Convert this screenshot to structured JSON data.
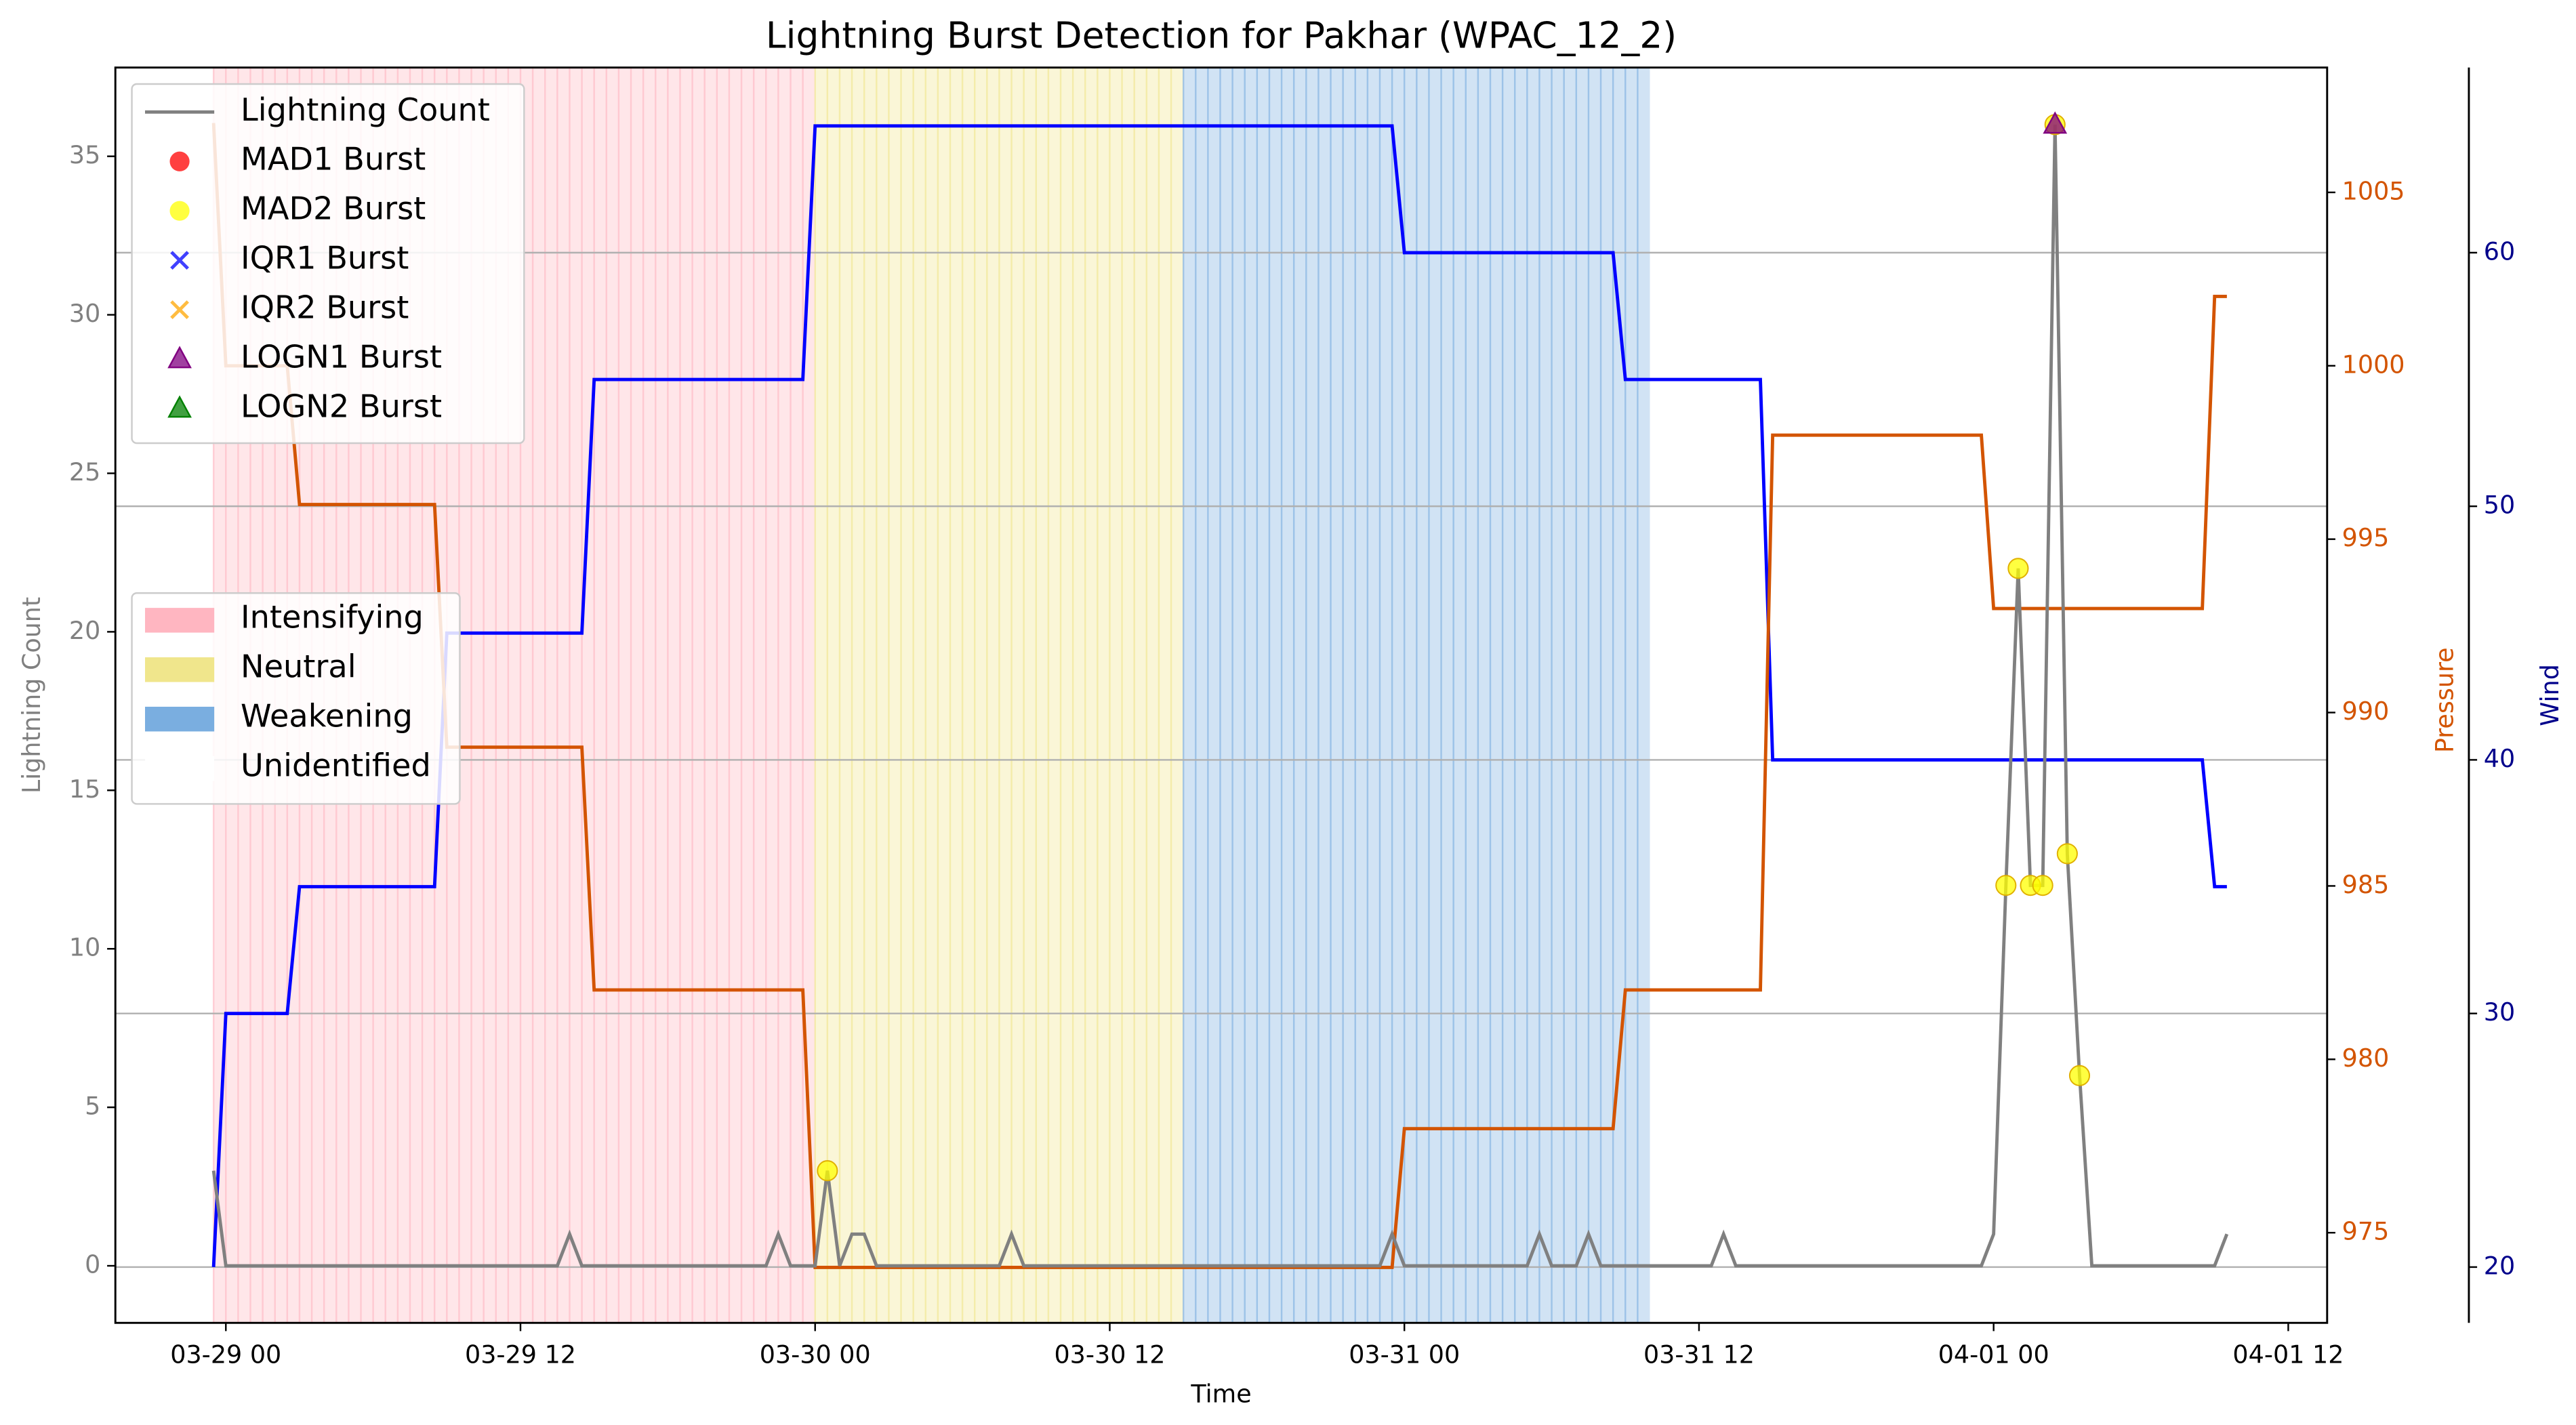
{
  "chart_data": {
    "type": "line",
    "title": "Lightning Burst Detection for Pakhar (WPAC_12_2)",
    "x_label": "Time",
    "y_label": "Lightning Count",
    "y2_label": "Pressure",
    "y3_label": "Wind",
    "xlim": [
      "03-28 19:30",
      "04-01 13:35"
    ],
    "xticks": [
      "03-29 00",
      "03-29 12",
      "03-30 00",
      "03-30 12",
      "03-31 00",
      "03-31 12",
      "04-01 00",
      "04-01 12"
    ],
    "ylim": [
      -1.8,
      37.8
    ],
    "yticks": [
      0,
      5,
      10,
      15,
      20,
      25,
      30,
      35
    ],
    "y2lim": [
      972.4,
      1008.6
    ],
    "y2ticks": [
      975,
      980,
      985,
      990,
      995,
      1000,
      1005
    ],
    "y3lim": [
      17.8,
      67.3
    ],
    "y3ticks": [
      20,
      30,
      40,
      50,
      60
    ],
    "grid_axis": "y3",
    "series": [
      {
        "name": "Lightning Count",
        "color": "#808080",
        "x": [
          "03-28 23:30",
          "03-29 00:00",
          "03-29 13:30",
          "03-29 14:00",
          "03-29 14:30",
          "03-29 22:00",
          "03-29 22:30",
          "03-29 23:00",
          "03-30 00:00",
          "03-30 00:30",
          "03-30 01:00",
          "03-30 01:30",
          "03-30 02:00",
          "03-30 02:30",
          "03-30 07:30",
          "03-30 08:00",
          "03-30 08:30",
          "03-30 23:00",
          "03-30 23:30",
          "03-31 00:00",
          "03-31 05:00",
          "03-31 05:30",
          "03-31 06:00",
          "03-31 07:00",
          "03-31 07:30",
          "03-31 08:00",
          "03-31 12:30",
          "03-31 13:00",
          "03-31 13:30",
          "03-31 23:30",
          "04-01 00:00",
          "04-01 00:30",
          "04-01 01:00",
          "04-01 01:30",
          "04-01 02:00",
          "04-01 02:30",
          "04-01 03:00",
          "04-01 03:30",
          "04-01 04:00",
          "04-01 09:00",
          "04-01 09:30"
        ],
        "values": [
          3,
          0,
          0,
          1,
          0,
          0,
          1,
          0,
          0,
          3,
          0,
          1,
          1,
          0,
          0,
          1,
          0,
          0,
          1,
          0,
          0,
          1,
          0,
          0,
          1,
          0,
          0,
          1,
          0,
          0,
          1,
          12,
          22,
          12,
          12,
          36,
          13,
          6,
          0,
          0,
          1
        ]
      },
      {
        "name": "MAD1 Burst",
        "color": "#ff0000",
        "marker": "o",
        "x": [],
        "values": []
      },
      {
        "name": "MAD2 Burst",
        "color": "#ffff00",
        "marker": "o",
        "x": [
          "03-30 00:30",
          "04-01 00:30",
          "04-01 01:00",
          "04-01 01:30",
          "04-01 02:00",
          "04-01 02:30",
          "04-01 03:00",
          "04-01 03:30"
        ],
        "values": [
          3,
          12,
          22,
          12,
          12,
          36,
          13,
          6
        ]
      },
      {
        "name": "IQR1 Burst",
        "color": "#0000ff",
        "marker": "x",
        "x": [],
        "values": []
      },
      {
        "name": "IQR2 Burst",
        "color": "#ffa500",
        "marker": "x",
        "x": [],
        "values": []
      },
      {
        "name": "LOGN1 Burst",
        "color": "#800080",
        "marker": "^",
        "x": [
          "04-01 02:30"
        ],
        "values": [
          36
        ]
      },
      {
        "name": "LOGN2 Burst",
        "color": "#008000",
        "marker": "^",
        "x": [],
        "values": []
      },
      {
        "color": "#d35400",
        "axis": "y2",
        "x": [
          "03-28 23:30",
          "03-29 00:00",
          "03-29 02:30",
          "03-29 03:00",
          "03-29 08:30",
          "03-29 09:00",
          "03-29 14:30",
          "03-29 15:00",
          "03-29 23:30",
          "03-30 00:00",
          "03-30 23:30",
          "03-31 00:00",
          "03-31 08:30",
          "03-31 09:00",
          "03-31 14:30",
          "03-31 15:00",
          "03-31 23:30",
          "04-01 00:00",
          "04-01 08:30",
          "04-01 09:00",
          "04-01 09:30"
        ],
        "values": [
          1007,
          1000,
          1000,
          996,
          996,
          989,
          989,
          982,
          982,
          974,
          974,
          978,
          978,
          982,
          982,
          998,
          998,
          993,
          993,
          1002,
          1002
        ]
      },
      {
        "color": "#0000ff",
        "axis": "y3",
        "x": [
          "03-28 23:30",
          "03-29 00:00",
          "03-29 02:30",
          "03-29 03:00",
          "03-29 08:30",
          "03-29 09:00",
          "03-29 14:30",
          "03-29 15:00",
          "03-29 23:30",
          "03-30 00:00",
          "03-30 23:30",
          "03-31 00:00",
          "03-31 08:30",
          "03-31 09:00",
          "03-31 14:30",
          "03-31 15:00",
          "04-01 08:30",
          "04-01 09:00",
          "04-01 09:30"
        ],
        "values": [
          20,
          30,
          30,
          35,
          35,
          45,
          45,
          55,
          55,
          65,
          65,
          60,
          60,
          55,
          55,
          40,
          40,
          35,
          35
        ]
      }
    ],
    "phases": [
      {
        "name": "Intensifying",
        "color": "#ffb6c1",
        "start": "03-28 23:30",
        "end": "03-30 00:00"
      },
      {
        "name": "Neutral",
        "color": "#f0e68c",
        "start": "03-30 00:00",
        "end": "03-30 15:00"
      },
      {
        "name": "Weakening",
        "color": "#7aaee0",
        "start": "03-30 15:00",
        "end": "03-31 10:00"
      },
      {
        "name": "Unidentified",
        "color": "#ffffff"
      }
    ]
  }
}
